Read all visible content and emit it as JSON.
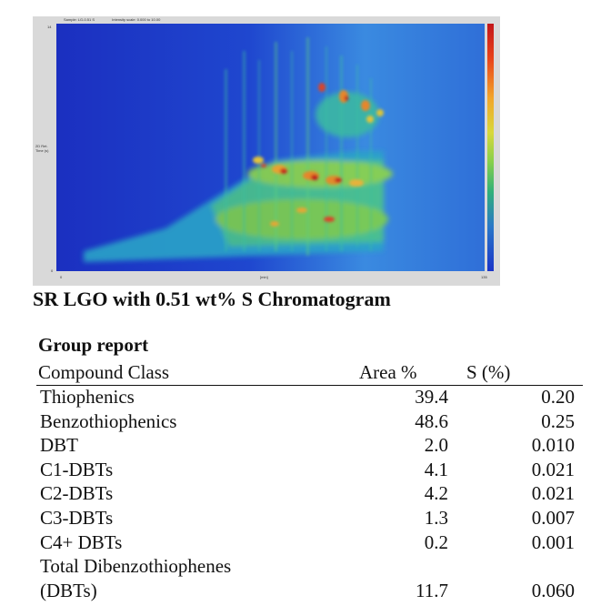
{
  "chromatogram": {
    "header_left": "Sample: LG-0.51 S",
    "header_right": "Intensity scale: 0.000 to 10.00",
    "y_axis_label": "2D Ret. Time (s)",
    "y_top": "14",
    "y_bottom": "0",
    "x_left": "0",
    "x_mid": "[min]",
    "x_right": "135",
    "colors": {
      "background": "#1a34c8",
      "low": "#2a78c8",
      "mid": "#86cf4c",
      "high": "#c2161a"
    }
  },
  "caption": "SR LGO with 0.51 wt% S Chromatogram",
  "report": {
    "title": "Group report",
    "columns": {
      "compound_class": "Compound Class",
      "area": "Area %",
      "s": "S (%)"
    },
    "rows": [
      {
        "name": "Thiophenics",
        "area": "39.4",
        "s": "0.20"
      },
      {
        "name": "Benzothiophenics",
        "area": "48.6",
        "s": "0.25"
      },
      {
        "name": "DBT",
        "area": "2.0",
        "s": "0.010"
      },
      {
        "name": "C1-DBTs",
        "area": "4.1",
        "s": "0.021"
      },
      {
        "name": "C2-DBTs",
        "area": "4.2",
        "s": "0.021"
      },
      {
        "name": "C3-DBTs",
        "area": "1.3",
        "s": "0.007"
      },
      {
        "name": "C4+ DBTs",
        "area": "0.2",
        "s": "0.001"
      },
      {
        "name": "Total Dibenzothiophenes",
        "area": "",
        "s": ""
      },
      {
        "name": "(DBTs)",
        "area": "11.7",
        "s": "0.060"
      }
    ]
  }
}
